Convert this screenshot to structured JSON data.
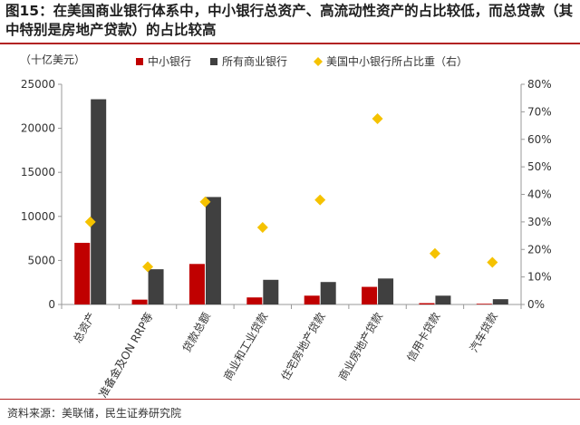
{
  "figure": {
    "title": "图15：在美国商业银行体系中，中小银行总资产、高流动性资产的占比较低，而总贷款（其中特别是房地产贷款）的占比较高",
    "source": "资料来源：美联储，民生证券研究院"
  },
  "colors": {
    "small_banks": "#c00000",
    "all_banks": "#404040",
    "share": "#f5c200",
    "axis": "#999999"
  },
  "chart_data": {
    "type": "bar",
    "ylabel": "（十亿美元）",
    "ylim": [
      0,
      25000
    ],
    "y_ticks": [
      "0",
      "5000",
      "10000",
      "15000",
      "20000",
      "25000"
    ],
    "y2lim": [
      0,
      0.8
    ],
    "y2_ticks": [
      "0%",
      "10%",
      "20%",
      "30%",
      "40%",
      "50%",
      "60%",
      "70%",
      "80%"
    ],
    "legend_position": "top",
    "categories": [
      "总资产",
      "准备金及ON RRP等",
      "贷款总额",
      "商业和工业贷款",
      "住宅房地产贷款",
      "商业房地产贷款",
      "信用卡贷款",
      "汽车贷款"
    ],
    "series": [
      {
        "name": "中小银行",
        "kind": "bar",
        "axis": "left",
        "color": "#c00000",
        "values": [
          7000,
          550,
          4600,
          800,
          1000,
          2000,
          150,
          80
        ]
      },
      {
        "name": "所有商业银行",
        "kind": "bar",
        "axis": "left",
        "color": "#404040",
        "values": [
          23300,
          4000,
          12200,
          2800,
          2550,
          2950,
          1000,
          600
        ]
      },
      {
        "name": "美国中小银行所占比重（右）",
        "kind": "marker",
        "axis": "right",
        "color": "#f5c200",
        "values": [
          0.3,
          0.137,
          0.373,
          0.28,
          0.38,
          0.675,
          0.185,
          0.153
        ]
      }
    ]
  }
}
